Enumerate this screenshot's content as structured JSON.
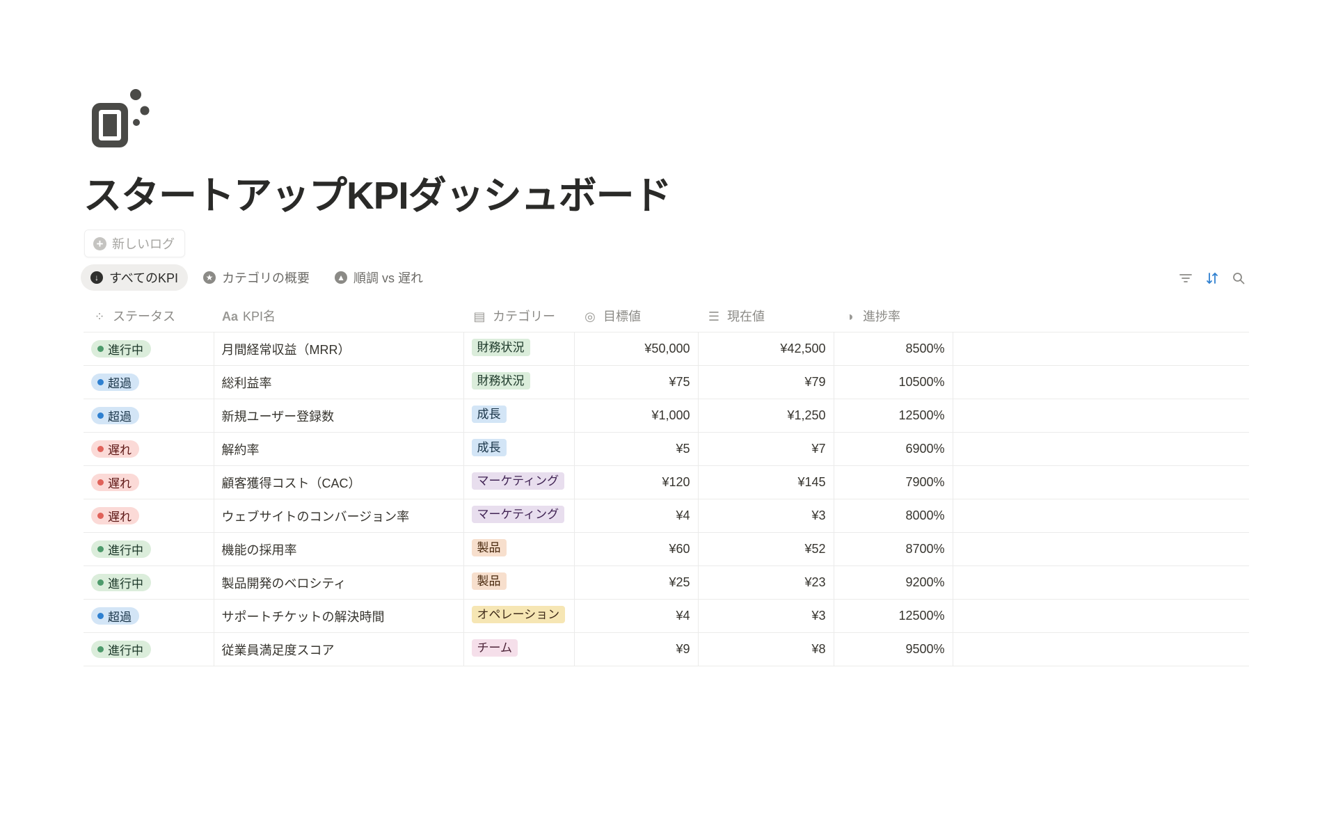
{
  "page": {
    "title": "スタートアップKPIダッシュボード",
    "icon": "game-controller-icon"
  },
  "new_log_label": "新しいログ",
  "tabs": [
    {
      "label": "すべてのKPI",
      "icon": "arrow-down-circle-icon",
      "active": true
    },
    {
      "label": "カテゴリの概要",
      "icon": "star-circle-icon",
      "active": false
    },
    {
      "label": "順調 vs 遅れ",
      "icon": "triangle-circle-icon",
      "active": false
    }
  ],
  "toolbar": {
    "filter": "filter-icon",
    "sort": "sort-icon",
    "search": "search-icon",
    "sort_active_color": "#2f80d0"
  },
  "columns": [
    {
      "label": "ステータス",
      "icon": "status-icon"
    },
    {
      "label": "KPI名",
      "icon": "text-icon"
    },
    {
      "label": "カテゴリー",
      "icon": "category-icon"
    },
    {
      "label": "目標値",
      "icon": "target-icon"
    },
    {
      "label": "現在値",
      "icon": "bar-icon"
    },
    {
      "label": "進捗率",
      "icon": "pie-icon"
    }
  ],
  "status_styles": {
    "進行中": {
      "bg": "#dbeddb",
      "dot": "#4d9a6b",
      "fg": "#1c3829"
    },
    "超過": {
      "bg": "#d3e5f6",
      "dot": "#2f80d0",
      "fg": "#183347"
    },
    "遅れ": {
      "bg": "#fbdad7",
      "dot": "#e0625a",
      "fg": "#5d1715"
    }
  },
  "category_styles": {
    "財務状況": {
      "bg": "#dbeddb",
      "fg": "#1c3829"
    },
    "成長": {
      "bg": "#d3e5f6",
      "fg": "#183347"
    },
    "マーケティング": {
      "bg": "#e8deee",
      "fg": "#412454"
    },
    "製品": {
      "bg": "#f7dfcd",
      "fg": "#49290e"
    },
    "オペレーション": {
      "bg": "#f6e6b4",
      "fg": "#402c1b"
    },
    "チーム": {
      "bg": "#f5dfea",
      "fg": "#4c2337"
    }
  },
  "rows": [
    {
      "status": "進行中",
      "name": "月間経常収益（MRR）",
      "category": "財務状況",
      "target": "¥50,000",
      "current": "¥42,500",
      "progress": "8500%"
    },
    {
      "status": "超過",
      "name": "総利益率",
      "category": "財務状況",
      "target": "¥75",
      "current": "¥79",
      "progress": "10500%"
    },
    {
      "status": "超過",
      "name": "新規ユーザー登録数",
      "category": "成長",
      "target": "¥1,000",
      "current": "¥1,250",
      "progress": "12500%"
    },
    {
      "status": "遅れ",
      "name": "解約率",
      "category": "成長",
      "target": "¥5",
      "current": "¥7",
      "progress": "6900%"
    },
    {
      "status": "遅れ",
      "name": "顧客獲得コスト（CAC）",
      "category": "マーケティング",
      "target": "¥120",
      "current": "¥145",
      "progress": "7900%"
    },
    {
      "status": "遅れ",
      "name": "ウェブサイトのコンバージョン率",
      "category": "マーケティング",
      "target": "¥4",
      "current": "¥3",
      "progress": "8000%"
    },
    {
      "status": "進行中",
      "name": "機能の採用率",
      "category": "製品",
      "target": "¥60",
      "current": "¥52",
      "progress": "8700%"
    },
    {
      "status": "進行中",
      "name": "製品開発のベロシティ",
      "category": "製品",
      "target": "¥25",
      "current": "¥23",
      "progress": "9200%"
    },
    {
      "status": "超過",
      "name": "サポートチケットの解決時間",
      "category": "オペレーション",
      "target": "¥4",
      "current": "¥3",
      "progress": "12500%"
    },
    {
      "status": "進行中",
      "name": "従業員満足度スコア",
      "category": "チーム",
      "target": "¥9",
      "current": "¥8",
      "progress": "9500%"
    }
  ]
}
